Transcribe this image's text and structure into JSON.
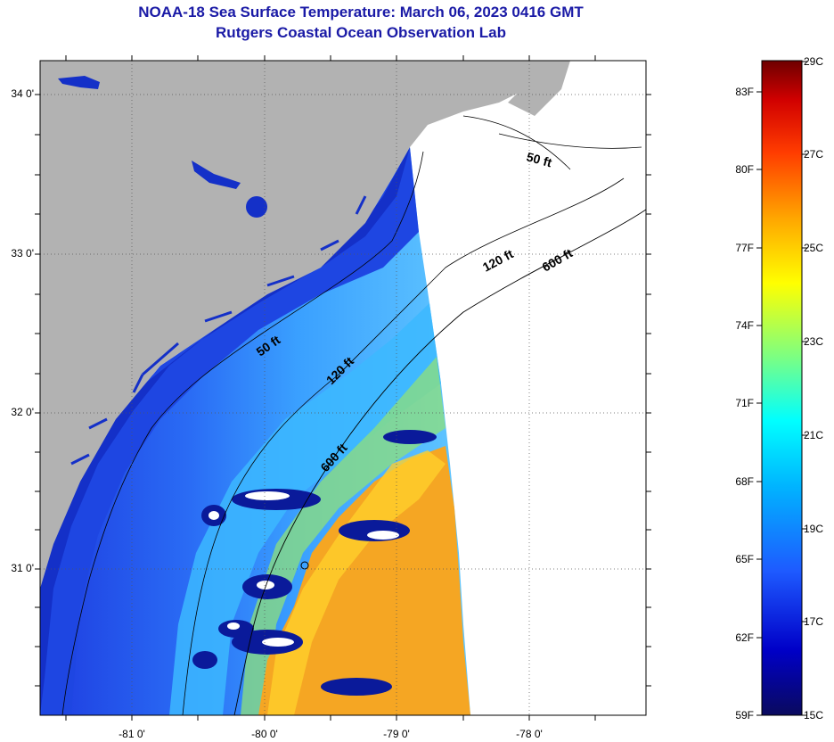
{
  "header": {
    "title": "NOAA-18 Sea Surface Temperature:  March 06, 2023 0416 GMT",
    "subtitle": "Rutgers Coastal Ocean Observation Lab"
  },
  "map": {
    "latitude_labels": [
      "34 0'",
      "33 0'",
      "32 0'",
      "31 0'"
    ],
    "longitude_labels": [
      "-81 0'",
      "-80 0'",
      "-79 0'",
      "-78 0'"
    ],
    "contour_labels": {
      "c50a": "50 ft",
      "c120a": "120 ft",
      "c600a": "600 ft",
      "c50b": "50 ft",
      "c120b": "120 ft",
      "c600b": "600 ft"
    },
    "colors": {
      "land": "#b2b2b2",
      "no_data": "#ffffff",
      "coastal_cold": "#1e4ae6",
      "shelf_mid": "#3a9cff",
      "gulf_stream": "#f5a623"
    }
  },
  "colorbar": {
    "fahrenheit_labels": [
      "83F",
      "80F",
      "77F",
      "74F",
      "71F",
      "68F",
      "65F",
      "62F",
      "59F"
    ],
    "celsius_labels": [
      "29C",
      "27C",
      "25C",
      "23C",
      "21C",
      "19C",
      "17C",
      "15C"
    ],
    "colors": [
      "#0a0a5e",
      "#0000c8",
      "#1e5aff",
      "#00b4ff",
      "#00ffff",
      "#7fff7f",
      "#ffff00",
      "#ffa500",
      "#ff3c00",
      "#d10000",
      "#6e0000"
    ]
  }
}
